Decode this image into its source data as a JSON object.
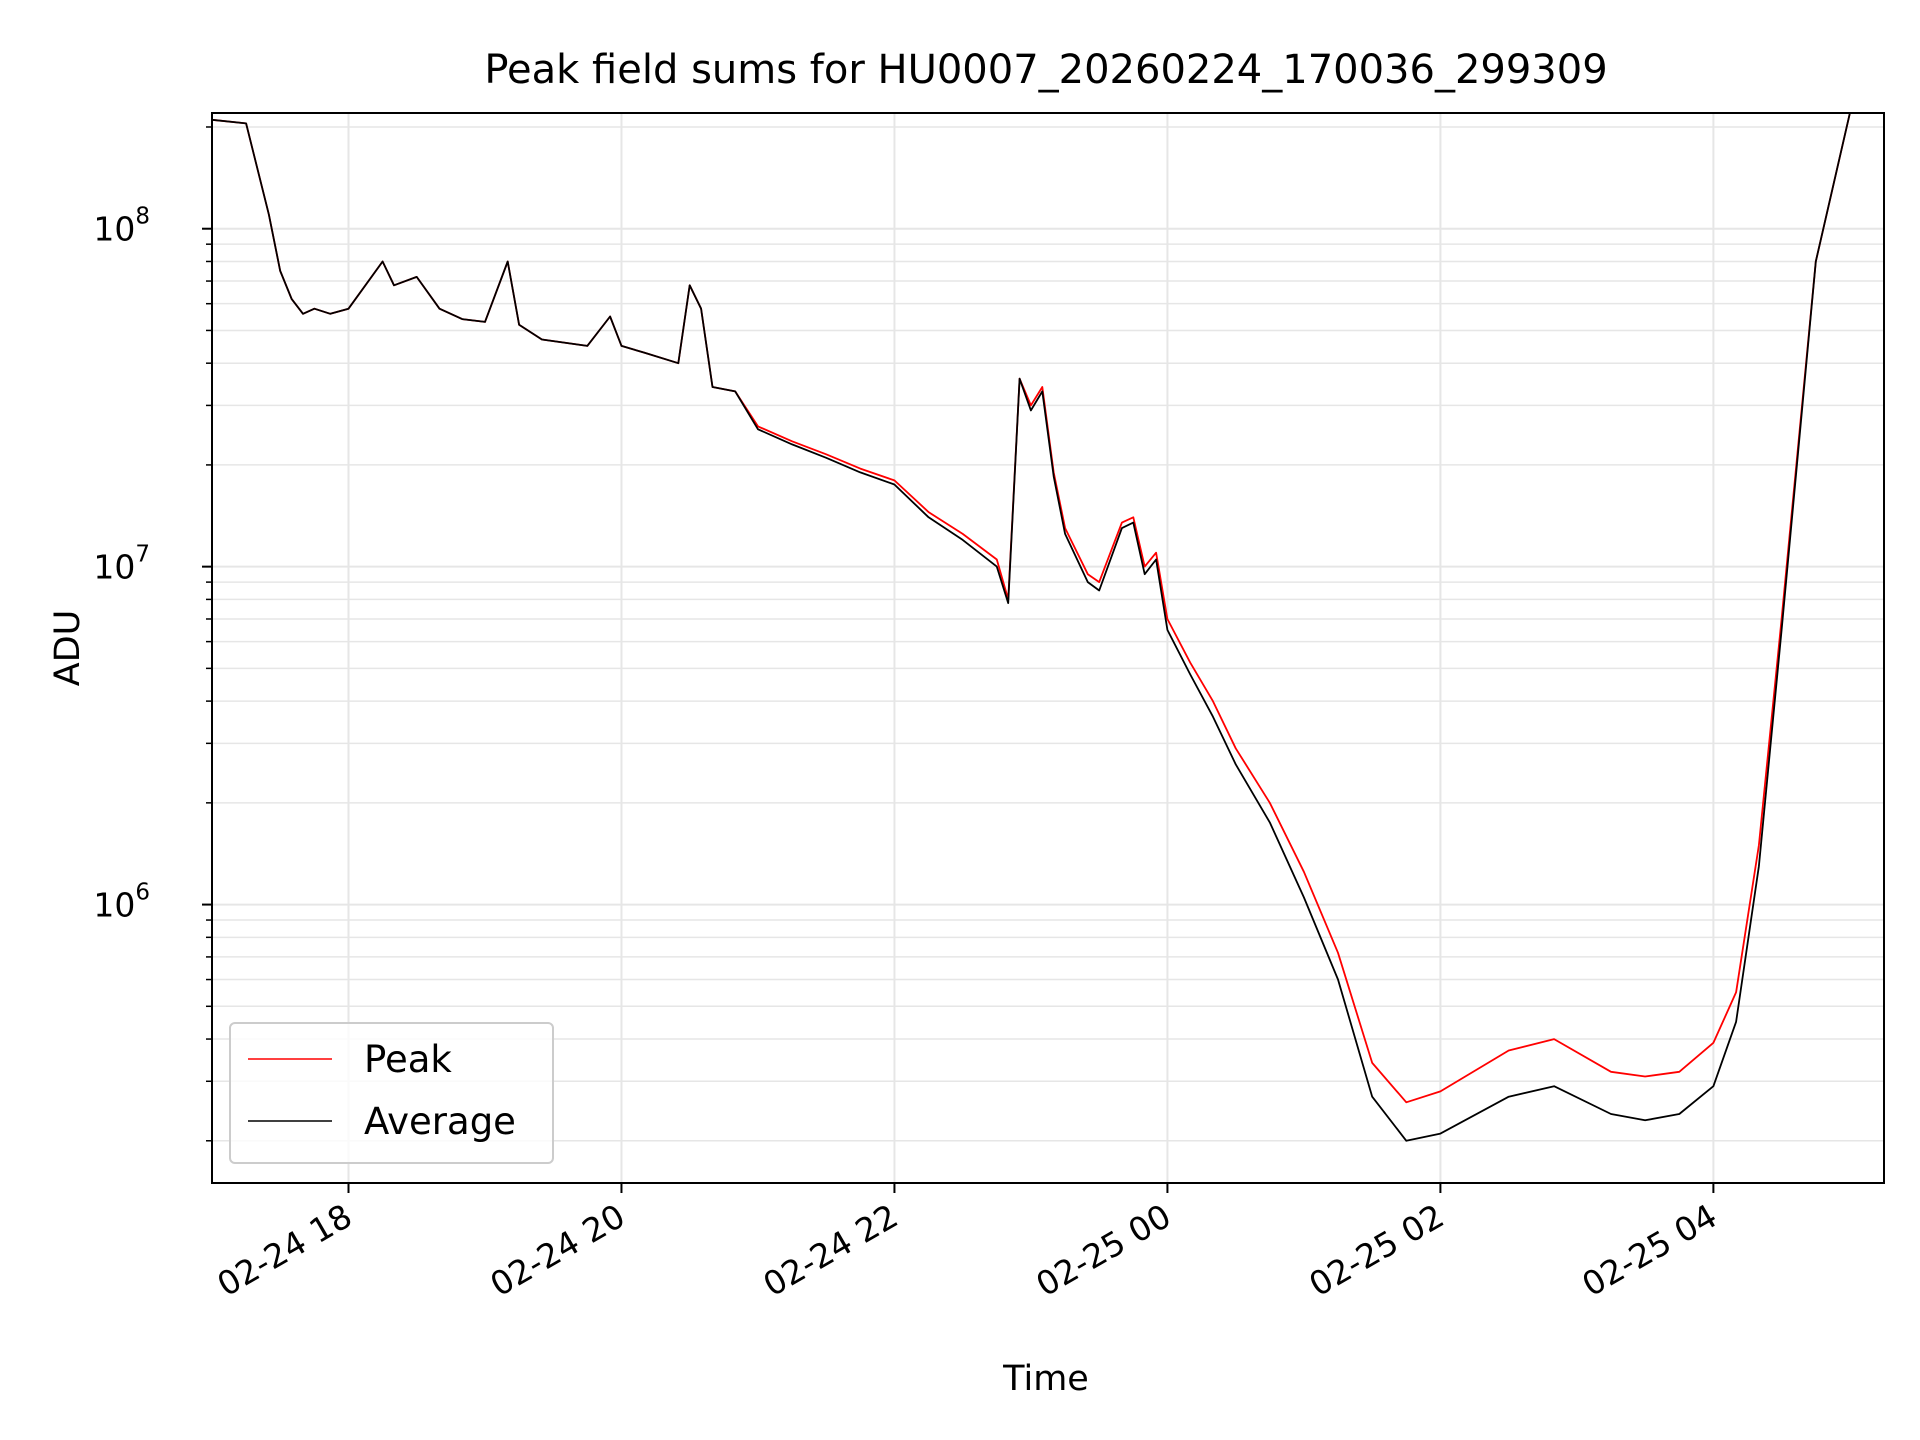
{
  "chart_data": {
    "type": "line",
    "title": "Peak field sums for HU0007_20260224_170036_299309",
    "xlabel": "Time",
    "ylabel": "ADU",
    "yscale": "log",
    "xlim": [
      "2026-02-24 17:00",
      "2026-02-25 05:15"
    ],
    "ylim": [
      150000,
      220000000
    ],
    "grid": true,
    "legend_location": "lower-left",
    "x_ticks": [
      {
        "value": "2026-02-24 18:00",
        "label": "02-24 18"
      },
      {
        "value": "2026-02-24 20:00",
        "label": "02-24 20"
      },
      {
        "value": "2026-02-24 22:00",
        "label": "02-24 22"
      },
      {
        "value": "2026-02-25 00:00",
        "label": "02-25 00"
      },
      {
        "value": "2026-02-25 02:00",
        "label": "02-25 02"
      },
      {
        "value": "2026-02-25 04:00",
        "label": "02-25 04"
      }
    ],
    "y_ticks": [
      {
        "value": 1000000,
        "base": "10",
        "exp": "6"
      },
      {
        "value": 10000000,
        "base": "10",
        "exp": "7"
      },
      {
        "value": 100000000,
        "base": "10",
        "exp": "8"
      }
    ],
    "x": [
      "2026-02-24 17:00",
      "2026-02-24 17:15",
      "2026-02-24 17:25",
      "2026-02-24 17:30",
      "2026-02-24 17:35",
      "2026-02-24 17:40",
      "2026-02-24 17:45",
      "2026-02-24 17:52",
      "2026-02-24 18:00",
      "2026-02-24 18:15",
      "2026-02-24 18:20",
      "2026-02-24 18:30",
      "2026-02-24 18:40",
      "2026-02-24 18:50",
      "2026-02-24 19:00",
      "2026-02-24 19:10",
      "2026-02-24 19:15",
      "2026-02-24 19:25",
      "2026-02-24 19:45",
      "2026-02-24 19:55",
      "2026-02-24 20:00",
      "2026-02-24 20:10",
      "2026-02-24 20:25",
      "2026-02-24 20:30",
      "2026-02-24 20:35",
      "2026-02-24 20:40",
      "2026-02-24 20:50",
      "2026-02-24 21:00",
      "2026-02-24 21:15",
      "2026-02-24 21:30",
      "2026-02-24 21:45",
      "2026-02-24 22:00",
      "2026-02-24 22:15",
      "2026-02-24 22:30",
      "2026-02-24 22:45",
      "2026-02-24 22:50",
      "2026-02-24 22:55",
      "2026-02-24 23:00",
      "2026-02-24 23:05",
      "2026-02-24 23:10",
      "2026-02-24 23:15",
      "2026-02-24 23:25",
      "2026-02-24 23:30",
      "2026-02-24 23:40",
      "2026-02-24 23:45",
      "2026-02-24 23:50",
      "2026-02-24 23:55",
      "2026-02-25 00:00",
      "2026-02-25 00:10",
      "2026-02-25 00:20",
      "2026-02-25 00:30",
      "2026-02-25 00:45",
      "2026-02-25 01:00",
      "2026-02-25 01:15",
      "2026-02-25 01:30",
      "2026-02-25 01:45",
      "2026-02-25 02:00",
      "2026-02-25 02:30",
      "2026-02-25 02:50",
      "2026-02-25 03:15",
      "2026-02-25 03:30",
      "2026-02-25 03:45",
      "2026-02-25 04:00",
      "2026-02-25 04:10",
      "2026-02-25 04:20",
      "2026-02-25 04:30",
      "2026-02-25 04:45",
      "2026-02-25 05:00",
      "2026-02-25 05:15"
    ],
    "series": [
      {
        "name": "Peak",
        "color": "#ff0000",
        "values": [
          210000000,
          205000000,
          110000000,
          75000000,
          62000000,
          56000000,
          58000000,
          56000000,
          58000000,
          80000000,
          68000000,
          72000000,
          58000000,
          54000000,
          53000000,
          80000000,
          52000000,
          47000000,
          45000000,
          55000000,
          45000000,
          43000000,
          40000000,
          68000000,
          58000000,
          34000000,
          33000000,
          26000000,
          23500000,
          21500000,
          19500000,
          18000000,
          14500000,
          12500000,
          10500000,
          8000000,
          36000000,
          30000000,
          34000000,
          19000000,
          13000000,
          9500000,
          9000000,
          13500000,
          14000000,
          10000000,
          11000000,
          7000000,
          5200000,
          4000000,
          2900000,
          2000000,
          1250000,
          720000,
          340000,
          260000,
          280000,
          370000,
          400000,
          320000,
          310000,
          320000,
          390000,
          550000,
          1500000,
          7000000,
          80000000,
          220000000,
          220000000
        ]
      },
      {
        "name": "Average",
        "color": "#000000",
        "values": [
          210000000,
          205000000,
          110000000,
          75000000,
          62000000,
          56000000,
          58000000,
          56000000,
          58000000,
          80000000,
          68000000,
          72000000,
          58000000,
          54000000,
          53000000,
          80000000,
          52000000,
          47000000,
          45000000,
          55000000,
          45000000,
          43000000,
          40000000,
          68000000,
          58000000,
          34000000,
          33000000,
          25500000,
          23000000,
          21000000,
          19000000,
          17500000,
          14000000,
          12000000,
          10000000,
          7800000,
          36000000,
          29000000,
          33000000,
          18500000,
          12500000,
          9000000,
          8500000,
          13000000,
          13500000,
          9500000,
          10500000,
          6500000,
          4800000,
          3600000,
          2600000,
          1750000,
          1050000,
          600000,
          270000,
          200000,
          210000,
          270000,
          290000,
          240000,
          230000,
          240000,
          290000,
          450000,
          1300000,
          6500000,
          80000000,
          220000000,
          220000000
        ]
      }
    ]
  }
}
